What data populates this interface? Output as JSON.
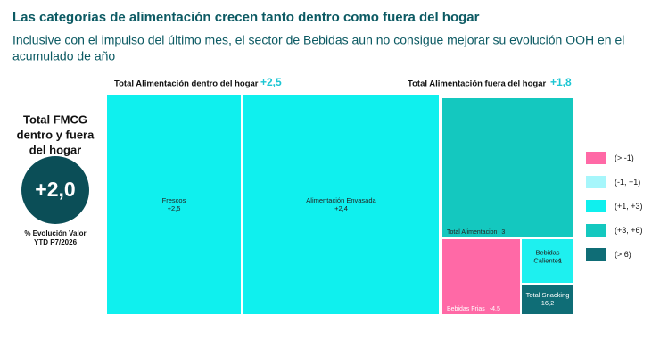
{
  "chart_data": {
    "type": "treemap",
    "title": "Las categorías de alimentación crecen tanto dentro como fuera del hogar",
    "subtitle": [
      "Inclusive con el impulso del último mes, el sector de Bebidas aun no consigue mejorar su evolución OOH en el",
      "acumulado de año"
    ],
    "kpi": {
      "label": [
        "Total FMCG",
        "dentro y fuera",
        "del hogar"
      ],
      "value": 2.0,
      "value_label": "+2,0",
      "note": [
        "% Evolución Valor",
        "YTD P7/2026"
      ],
      "color": "#0b4e57"
    },
    "groups": [
      {
        "name": "Total Alimentación dentro del hogar",
        "value": 2.5,
        "value_label": "+2,5"
      },
      {
        "name": "Total Alimentación fuera del hogar",
        "value": 1.8,
        "value_label": "+1,8"
      }
    ],
    "items": [
      {
        "name": [
          "Frescos"
        ],
        "value": 2.5,
        "value_label": "+2,5",
        "color": "#0ff0ee"
      },
      {
        "name": [
          "Alimentación Envasada"
        ],
        "value": 2.4,
        "value_label": "+2,4",
        "color": "#0ff0ee"
      },
      {
        "name": [
          "Total Alimentacion"
        ],
        "value": 3,
        "value_label": "3",
        "color": "#14c8bf"
      },
      {
        "name": [
          "Bebidas Frias"
        ],
        "value": -4.5,
        "value_label": "-4,5",
        "color": "#ff69a6"
      },
      {
        "name": [
          "Bebidas",
          "Calientes"
        ],
        "value": 1,
        "value_label": "1",
        "color": "#1ef0ef"
      },
      {
        "name": [
          "Total Snacking"
        ],
        "value": 16.2,
        "value_label": "16,2",
        "color": "#0f6d76"
      }
    ],
    "legend": [
      {
        "label": "(> -1)",
        "color": "#ff69a6"
      },
      {
        "label": "(-1, +1)",
        "color": "#a6f6fb"
      },
      {
        "label": "(+1, +3)",
        "color": "#0ff0ee"
      },
      {
        "label": "(+3, +6)",
        "color": "#14c8bf"
      },
      {
        "label": "(> 6)",
        "color": "#0f6d76"
      }
    ]
  }
}
